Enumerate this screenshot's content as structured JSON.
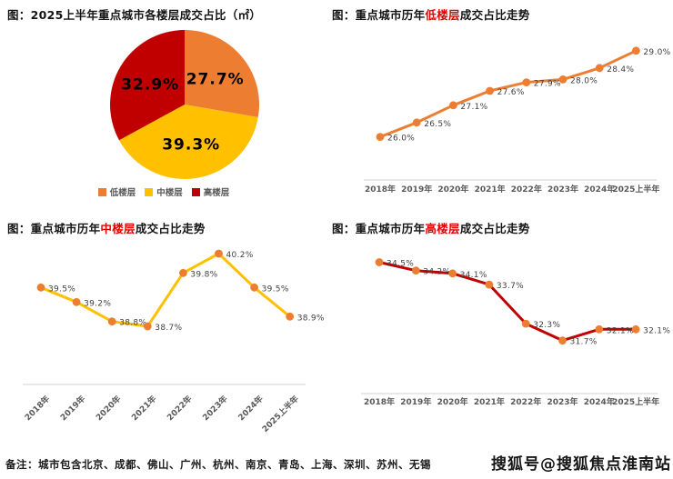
{
  "page": {
    "note": "备注：城市包含北京、成都、佛山、广州、杭州、南京、青岛、上海、深圳、苏州、无锡",
    "watermark": "搜狐号@搜狐焦点淮南站"
  },
  "colors": {
    "orange": "#ED7D31",
    "yellow": "#FFC000",
    "red": "#C00000",
    "title_highlight": "#E30000",
    "axis_line": "#D9D9D9",
    "tick_text": "#595959",
    "data_label": "#3F3F3F"
  },
  "chart_data": [
    {
      "id": "pie-floor-share",
      "type": "pie",
      "title": {
        "prefix": "图：",
        "highlight": "",
        "suffix": "2025上半年重点城市各楼层成交占比（㎡）"
      },
      "slices": [
        {
          "label": "低楼层",
          "value": 27.7,
          "color": "#ED7D31"
        },
        {
          "label": "中楼层",
          "value": 39.3,
          "color": "#FFC000"
        },
        {
          "label": "高楼层",
          "value": 32.9,
          "color": "#C00000"
        }
      ],
      "legend_position": "bottom",
      "label_format": "percent"
    },
    {
      "id": "line-low-floor",
      "type": "line",
      "title": {
        "prefix": "图：重点城市历年",
        "highlight": "低楼层",
        "suffix": "成交占比走势"
      },
      "categories": [
        "2018年",
        "2019年",
        "2020年",
        "2021年",
        "2022年",
        "2023年",
        "2024年",
        "2025上半年"
      ],
      "values": [
        26.0,
        26.5,
        27.1,
        27.6,
        27.9,
        28.0,
        28.4,
        29.0
      ],
      "line_color": "#ED7D31",
      "marker_color": "#ED7D31",
      "ylim": [
        24.5,
        29.5
      ],
      "grid": false,
      "rotated_ticks": false
    },
    {
      "id": "line-mid-floor",
      "type": "line",
      "title": {
        "prefix": "图：重点城市历年",
        "highlight": "中楼层",
        "suffix": "成交占比走势"
      },
      "categories": [
        "2018年",
        "2019年",
        "2020年",
        "2021年",
        "2022年",
        "2023年",
        "2024年",
        "2025上半年"
      ],
      "values": [
        39.5,
        39.2,
        38.8,
        38.7,
        39.8,
        40.2,
        39.5,
        38.9
      ],
      "line_color": "#FFC000",
      "marker_color": "#ED7D31",
      "ylim": [
        37.5,
        40.5
      ],
      "grid": false,
      "rotated_ticks": true
    },
    {
      "id": "line-high-floor",
      "type": "line",
      "title": {
        "prefix": "图：重点城市历年",
        "highlight": "高楼层",
        "suffix": "成交占比走势"
      },
      "categories": [
        "2018年",
        "2019年",
        "2020年",
        "2021年",
        "2022年",
        "2023年",
        "2024年",
        "2025上半年"
      ],
      "values": [
        34.5,
        34.2,
        34.1,
        33.7,
        32.3,
        31.7,
        32.1,
        32.1
      ],
      "line_color": "#C00000",
      "marker_color": "#ED7D31",
      "ylim": [
        29.8,
        35.1
      ],
      "grid": false,
      "rotated_ticks": false
    }
  ]
}
